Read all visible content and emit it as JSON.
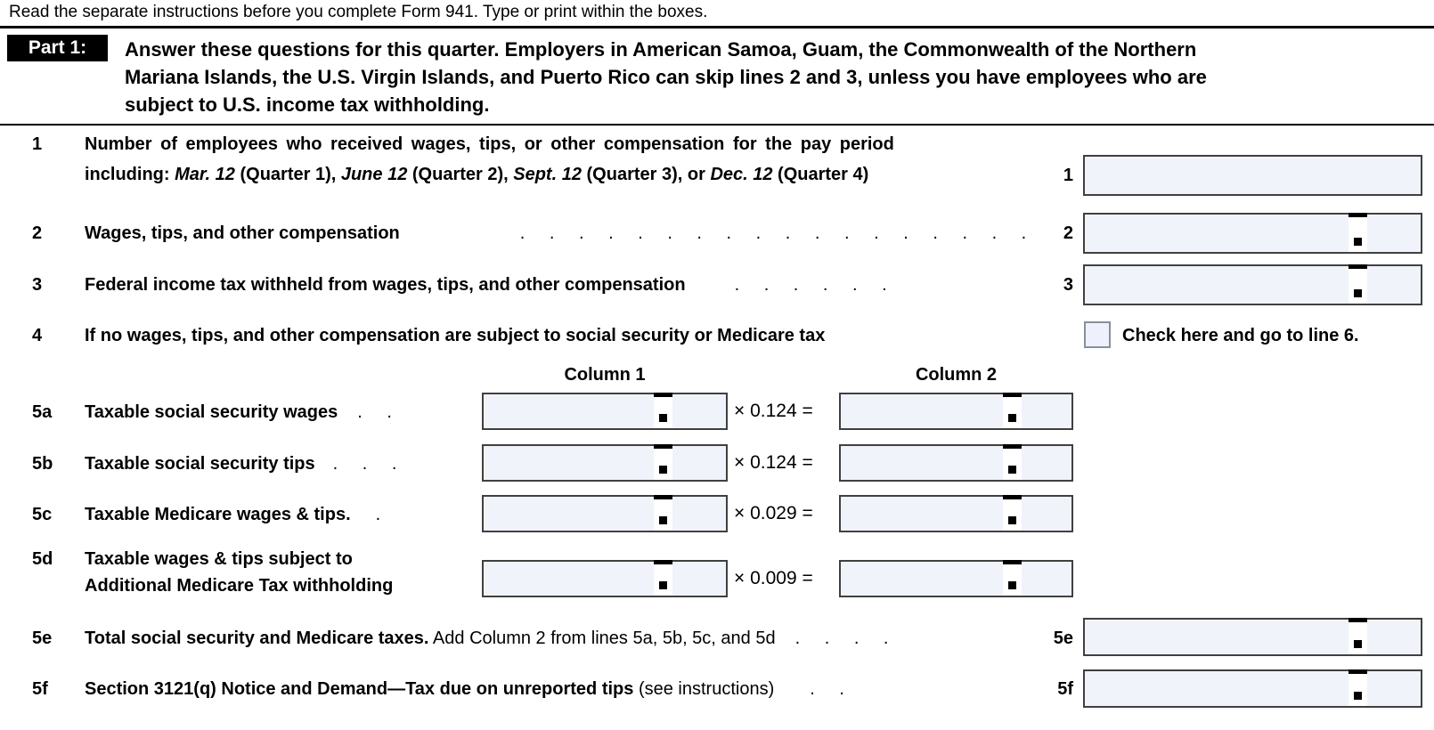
{
  "form": {
    "top_instruction": "Read the separate instructions before you complete Form 941. Type or print within the boxes.",
    "part1": {
      "label": "Part 1:",
      "heading_lines": [
        "Answer these questions for this quarter. Employers in American Samoa, Guam, the Commonwealth of the Northern",
        "Mariana Islands, the U.S. Virgin Islands, and Puerto Rico can skip lines 2 and 3, unless you have employees who are",
        "subject to U.S. income tax withholding."
      ]
    },
    "columns": {
      "col1": "Column 1",
      "col2": "Column 2"
    },
    "line1": {
      "no": "1",
      "label_line1": "Number of employees who received wages, tips, or other compensation for the pay period",
      "label_line2_segments": [
        {
          "t": "including: ",
          "s": "b"
        },
        {
          "t": "Mar. 12",
          "s": "bi"
        },
        {
          "t": " (Quarter 1), ",
          "s": "b"
        },
        {
          "t": "June 12",
          "s": "bi"
        },
        {
          "t": " (Quarter 2), ",
          "s": "b"
        },
        {
          "t": "Sept. 12",
          "s": "bi"
        },
        {
          "t": " (Quarter 3), or ",
          "s": "b"
        },
        {
          "t": "Dec. 12",
          "s": "bi"
        },
        {
          "t": " (Quarter 4)",
          "s": "b"
        }
      ],
      "box_label": "1",
      "value": ""
    },
    "line2": {
      "no": "2",
      "label": "Wages, tips, and other compensation",
      "dots": ". . . . . . . . . . . . . . . . . .",
      "box_label": "2",
      "value": ""
    },
    "line3": {
      "no": "3",
      "label": "Federal income tax withheld from wages, tips, and other compensation",
      "dots": ". . . . . .",
      "box_label": "3",
      "value": ""
    },
    "line4": {
      "no": "4",
      "label": "If no wages, tips, and other compensation are subject to social security or Medicare tax",
      "checkbox_label": "Check here and go to line 6.",
      "checked": false
    },
    "line5a": {
      "no": "5a",
      "label": "Taxable social security wages",
      "dots": ". .",
      "multiplier": "× 0.124 =",
      "col1_value": "",
      "col2_value": ""
    },
    "line5b": {
      "no": "5b",
      "label": "Taxable social security tips",
      "dots": ". . .",
      "multiplier": "× 0.124 =",
      "col1_value": "",
      "col2_value": ""
    },
    "line5c": {
      "no": "5c",
      "label": "Taxable Medicare wages & tips.",
      "dots": ".",
      "multiplier": "× 0.029 =",
      "col1_value": "",
      "col2_value": ""
    },
    "line5d": {
      "no": "5d",
      "label_line1": "Taxable wages & tips subject to",
      "label_line2": "Additional Medicare Tax withholding",
      "multiplier": "× 0.009 =",
      "col1_value": "",
      "col2_value": ""
    },
    "line5e": {
      "no": "5e",
      "segments": [
        {
          "t": "Total social security and Medicare taxes.",
          "s": "b"
        },
        {
          "t": " Add Column 2 from lines 5a, 5b, 5c, and 5d",
          "s": "r"
        }
      ],
      "dots": ". . . .",
      "box_label": "5e",
      "value": ""
    },
    "line5f": {
      "no": "5f",
      "segments": [
        {
          "t": "Section 3121(q) Notice and Demand—Tax due on unreported tips",
          "s": "b"
        },
        {
          "t": " (see instructions)",
          "s": "r"
        }
      ],
      "dots": ". .",
      "box_label": "5f",
      "value": ""
    },
    "colors": {
      "field_fill": "#f1f3fb",
      "field_border": "#404040",
      "checkbox_fill": "#eef1fb",
      "checkbox_border": "#8a8f9a",
      "part1_header_bg": "#000000",
      "part1_header_text": "#ffffff"
    }
  }
}
